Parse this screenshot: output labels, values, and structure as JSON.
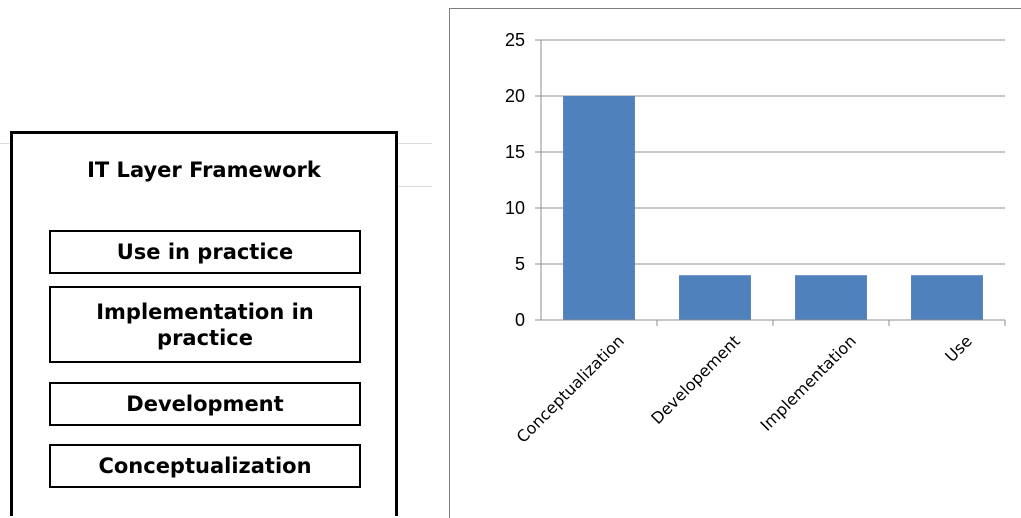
{
  "framework": {
    "title": "IT Layer Framework",
    "layers": [
      "Use in practice",
      "Implementation in practice",
      "Development",
      "Conceptualization"
    ]
  },
  "chart_data": {
    "type": "bar",
    "categories": [
      "Conceptualization",
      "Developement",
      "Implementation",
      "Use"
    ],
    "values": [
      20,
      4,
      4,
      4
    ],
    "ylim": [
      0,
      25
    ],
    "yticks": [
      0,
      5,
      10,
      15,
      20,
      25
    ],
    "grid": true,
    "bar_color": "#4F81BD",
    "title": "",
    "xlabel": "",
    "ylabel": ""
  }
}
